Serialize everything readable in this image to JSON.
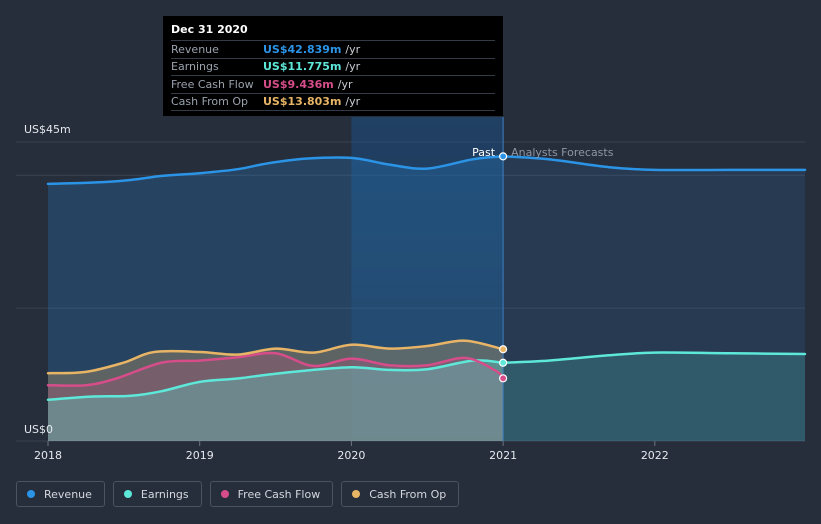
{
  "chart_data": {
    "type": "area",
    "y_axis": {
      "max_label": "US$45m",
      "min_label": "US$0",
      "ylim": [
        0,
        45
      ]
    },
    "x_axis": {
      "ticks": [
        "2018",
        "2019",
        "2020",
        "2021",
        "2022"
      ],
      "xlim": [
        2018.0,
        2022.99
      ]
    },
    "divider": {
      "x": 2021.0,
      "past_label": "Past",
      "forecast_label": "Analysts Forecasts"
    },
    "series": [
      {
        "name": "Revenue",
        "color": "#2b94e6",
        "x": [
          2018.0,
          2018.3,
          2018.55,
          2018.75,
          2019.0,
          2019.25,
          2019.45,
          2019.7,
          2020.0,
          2020.25,
          2020.5,
          2020.8,
          2021.0
        ],
        "values": [
          38.7,
          38.9,
          39.3,
          39.9,
          40.3,
          40.9,
          41.8,
          42.5,
          42.6,
          41.6,
          41.0,
          42.4,
          42.84
        ],
        "forecast_x": [
          2021.0,
          2021.3,
          2021.7,
          2022.0,
          2022.5,
          2022.99
        ],
        "forecast_values": [
          42.84,
          42.4,
          41.2,
          40.8,
          40.8,
          40.8
        ]
      },
      {
        "name": "Earnings",
        "color": "#5ee8d9",
        "x": [
          2018.0,
          2018.3,
          2018.55,
          2018.75,
          2019.0,
          2019.25,
          2019.45,
          2019.7,
          2020.0,
          2020.25,
          2020.5,
          2020.8,
          2021.0
        ],
        "values": [
          6.2,
          6.7,
          6.8,
          7.5,
          8.9,
          9.4,
          10.0,
          10.6,
          11.1,
          10.7,
          10.8,
          12.1,
          11.775
        ],
        "forecast_x": [
          2021.0,
          2021.3,
          2021.7,
          2022.0,
          2022.5,
          2022.99
        ],
        "forecast_values": [
          11.775,
          12.1,
          12.9,
          13.3,
          13.2,
          13.1
        ]
      },
      {
        "name": "Free Cash Flow",
        "color": "#d64d8a",
        "x": [
          2018.0,
          2018.25,
          2018.45,
          2018.75,
          2019.0,
          2019.25,
          2019.5,
          2019.75,
          2020.0,
          2020.25,
          2020.5,
          2020.75,
          2020.95,
          2021.0
        ],
        "values": [
          8.4,
          8.4,
          9.4,
          11.8,
          12.1,
          12.6,
          13.2,
          11.3,
          12.4,
          11.4,
          11.4,
          12.5,
          10.6,
          9.436
        ]
      },
      {
        "name": "Cash From Op",
        "color": "#e8b566",
        "x": [
          2018.0,
          2018.25,
          2018.5,
          2018.7,
          2019.0,
          2019.25,
          2019.5,
          2019.75,
          2020.0,
          2020.25,
          2020.5,
          2020.75,
          2021.0
        ],
        "values": [
          10.2,
          10.4,
          11.8,
          13.4,
          13.4,
          13.0,
          13.9,
          13.3,
          14.5,
          13.9,
          14.3,
          15.1,
          13.803
        ]
      }
    ],
    "legend": [
      "Revenue",
      "Earnings",
      "Free Cash Flow",
      "Cash From Op"
    ]
  },
  "tooltip": {
    "date": "Dec 31 2020",
    "rows": [
      {
        "label": "Revenue",
        "value": "US$42.839m",
        "unit": "/yr",
        "color": "#2b94e6"
      },
      {
        "label": "Earnings",
        "value": "US$11.775m",
        "unit": "/yr",
        "color": "#5ee8d9"
      },
      {
        "label": "Free Cash Flow",
        "value": "US$9.436m",
        "unit": "/yr",
        "color": "#d64d8a"
      },
      {
        "label": "Cash From Op",
        "value": "US$13.803m",
        "unit": "/yr",
        "color": "#e8b566"
      }
    ]
  },
  "legend_items": [
    {
      "label": "Revenue",
      "color": "#2b94e6"
    },
    {
      "label": "Earnings",
      "color": "#5ee8d9"
    },
    {
      "label": "Free Cash Flow",
      "color": "#d64d8a"
    },
    {
      "label": "Cash From Op",
      "color": "#e8b566"
    }
  ]
}
